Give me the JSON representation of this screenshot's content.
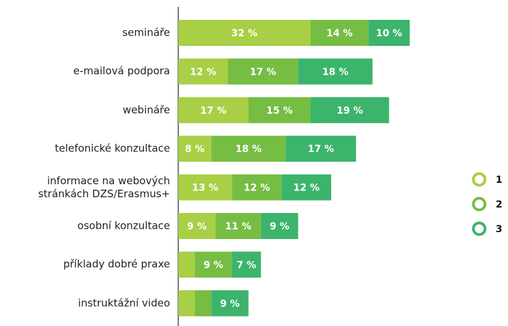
{
  "chart_data": {
    "type": "stacked-bar-horizontal",
    "categories": [
      "semináře",
      "e-mailová podpora",
      "webináře",
      "telefonické konzultace",
      "informace na webových\nstránkách DZS/Erasmus+",
      "osobní konzultace",
      "příklady dobré praxe",
      "instruktážní video"
    ],
    "series": [
      {
        "name": "1",
        "color": "#a8cf45",
        "values": [
          32,
          12,
          17,
          8,
          13,
          9,
          4,
          4
        ],
        "value_labels": [
          "32 %",
          "12 %",
          "17 %",
          "8 %",
          "13 %",
          "9 %",
          null,
          null
        ]
      },
      {
        "name": "2",
        "color": "#76bd43",
        "values": [
          14,
          17,
          15,
          18,
          12,
          11,
          9,
          4
        ],
        "value_labels": [
          "14 %",
          "17 %",
          "15 %",
          "18 %",
          "12 %",
          "11 %",
          "9 %",
          null
        ]
      },
      {
        "name": "3",
        "color": "#3cb46c",
        "values": [
          10,
          18,
          19,
          17,
          12,
          9,
          7,
          9
        ],
        "value_labels": [
          "10 %",
          "18 %",
          "19 %",
          "17 %",
          "12 %",
          "9 %",
          "7 %",
          "9 %"
        ]
      }
    ],
    "legend": "right"
  }
}
